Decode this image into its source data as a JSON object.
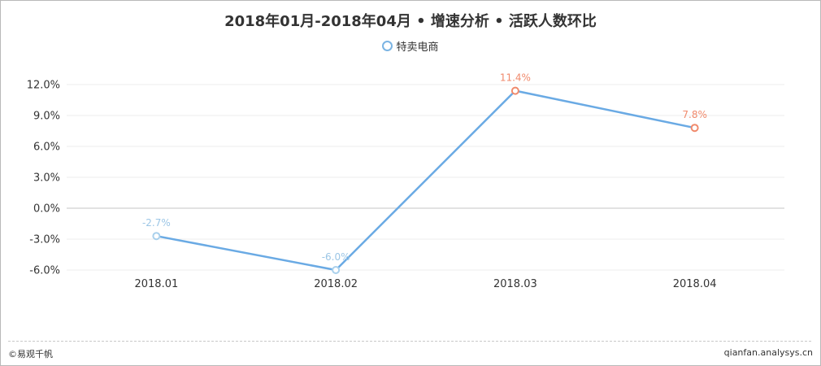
{
  "chart_data": {
    "type": "line",
    "title": "2018年01月-2018年04月 • 增速分析 • 活跃人数环比",
    "categories": [
      "2018.01",
      "2018.02",
      "2018.03",
      "2018.04"
    ],
    "series": [
      {
        "name": "特卖电商",
        "values": [
          -2.7,
          -6.0,
          11.4,
          7.8
        ],
        "labels": [
          "-2.7%",
          "-6.0%",
          "11.4%",
          "7.8%"
        ]
      }
    ],
    "yticks": [
      "12.0%",
      "9.0%",
      "6.0%",
      "3.0%",
      "0.0%",
      "-3.0%",
      "-6.0%"
    ],
    "ylim": [
      -6,
      12
    ],
    "grid": true,
    "legend": "top-center",
    "colors": {
      "line": "#6aaae4",
      "marker_negative": "#a9d0ec",
      "marker_positive": "#f08a6c",
      "label_negative": "#9cc6e6",
      "label_positive": "#f08a6c"
    }
  },
  "footer": {
    "left": "©易观千帆",
    "right": "qianfan.analysys.cn"
  }
}
